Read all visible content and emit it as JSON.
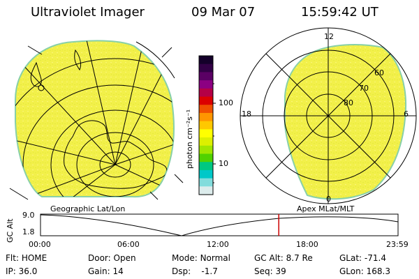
{
  "header": {
    "instrument": "Ultraviolet Imager",
    "date": "09 Mar 07",
    "time": "15:59:42 UT"
  },
  "colorbar": {
    "unit_label": "photon cm⁻²s⁻¹",
    "tick_labels": [
      "100",
      "10"
    ],
    "colors_top_to_bottom": [
      "#14002a",
      "#320046",
      "#5a0064",
      "#8c0082",
      "#b40046",
      "#dc0000",
      "#f05000",
      "#ff9600",
      "#ffc800",
      "#ffff00",
      "#dcf000",
      "#a0e600",
      "#50d200",
      "#00c882",
      "#00c8c8",
      "#82dcdc",
      "#dcecec"
    ]
  },
  "left_panel": {
    "title": "Geographic Lat/Lon",
    "fill_color": "#f2f04a",
    "edge_color": "#88d0a8"
  },
  "right_panel": {
    "title": "Apex MLat/MLT",
    "labels": {
      "mlt_top": "12",
      "mlt_left": "18",
      "mlt_right": "6",
      "mlt_bottom": "0",
      "lat_60": "60",
      "lat_70": "70",
      "lat_80": "80"
    }
  },
  "altitude_plot": {
    "y_axis_label": "GC Alt",
    "y_ticks": [
      "9.0",
      "1.8"
    ],
    "x_ticks": [
      "00:00",
      "06:00",
      "12:00",
      "18:00",
      "23:59"
    ],
    "marker_time": "15:59",
    "marker_color": "#cc0000"
  },
  "status": {
    "row1": [
      {
        "label": "Flt:",
        "value": "HOME"
      },
      {
        "label": "Door:",
        "value": "Open"
      },
      {
        "label": "Mode:",
        "value": "Normal"
      },
      {
        "label": "GC Alt:",
        "value": "8.7 Re"
      },
      {
        "label": "GLat:",
        "value": "-71.4"
      }
    ],
    "row2": [
      {
        "label": "IP:",
        "value": "36.0"
      },
      {
        "label": "Gain:",
        "value": "14"
      },
      {
        "label": "Dsp:",
        "value": "   -1.7"
      },
      {
        "label": "Seq:",
        "value": "39"
      },
      {
        "label": "GLon:",
        "value": "168.3"
      }
    ]
  }
}
